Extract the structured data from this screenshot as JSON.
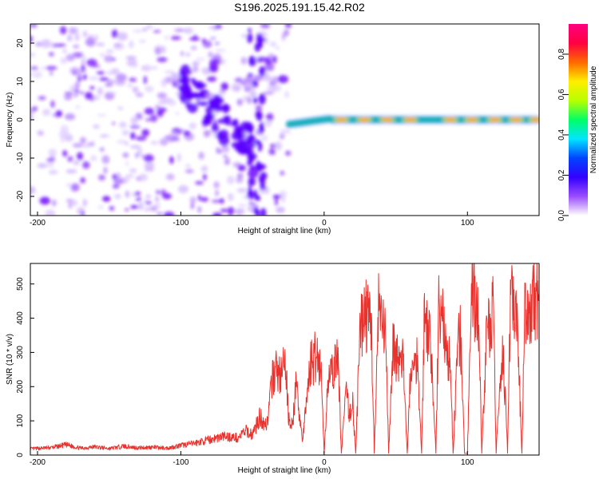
{
  "title": "S196.2025.191.15.42.R02",
  "colors": {
    "snr_line": "#e8322d",
    "axis": "#000000",
    "background": "#ffffff"
  },
  "spectrogram": {
    "xlabel": "Height of straight line (km)",
    "ylabel": "Frequency (Hz)",
    "xlim": [
      -205,
      150
    ],
    "ylim": [
      -25,
      25
    ],
    "xticks": [
      -200,
      -100,
      0,
      100
    ],
    "yticks": [
      -20,
      -10,
      0,
      10,
      20
    ],
    "colorbar": {
      "label": "Normalized spectral amplitude",
      "range": [
        0,
        0.95
      ],
      "ticks": [
        0.0,
        0.2,
        0.4,
        0.6,
        0.8
      ],
      "tick_labels": [
        "0.0",
        "0.2",
        "0.4",
        "0.6",
        "0.8"
      ],
      "colormap": [
        "#ffffff",
        "#9a4dff",
        "#3300ff",
        "#0044ff",
        "#00e5ff",
        "#00ff66",
        "#b8ff00",
        "#ffee00",
        "#ff6a00",
        "#ff0040",
        "#ff0080"
      ]
    }
  },
  "chart_data": {
    "type": "line",
    "title": "",
    "xlabel": "Height of straight line (km)",
    "ylabel": "SNR (10 * v/v)",
    "xlim": [
      -205,
      150
    ],
    "ylim": [
      0,
      560
    ],
    "xticks": [
      -200,
      -100,
      0,
      100
    ],
    "yticks": [
      0,
      100,
      200,
      300,
      400,
      500
    ],
    "series": [
      {
        "x": [
          -205,
          -190,
          -180,
          -170,
          -160,
          -150,
          -140,
          -130,
          -120,
          -110,
          -100,
          -90,
          -80,
          -70,
          -60,
          -55,
          -50,
          -45,
          -40,
          -35,
          -30,
          -27,
          -25,
          -22,
          -20,
          -18,
          -15,
          -10,
          -5,
          -2,
          0,
          3,
          5,
          8,
          10,
          12,
          15,
          18,
          20,
          22,
          25,
          28,
          30,
          33,
          35,
          38,
          40,
          43,
          45,
          48,
          50,
          53,
          55,
          58,
          60,
          63,
          65,
          68,
          70,
          73,
          75,
          78,
          80,
          83,
          85,
          88,
          90,
          93,
          95,
          98,
          100,
          103,
          105,
          108,
          110,
          113,
          115,
          118,
          120,
          123,
          125,
          128,
          130,
          133,
          135,
          138,
          140,
          143,
          145,
          148,
          150
        ],
        "y": [
          18,
          22,
          30,
          20,
          24,
          19,
          26,
          21,
          23,
          20,
          28,
          35,
          45,
          55,
          50,
          70,
          60,
          110,
          90,
          250,
          230,
          270,
          120,
          80,
          200,
          150,
          40,
          260,
          300,
          240,
          5,
          250,
          220,
          280,
          260,
          5,
          180,
          120,
          150,
          5,
          350,
          430,
          400,
          380,
          5,
          420,
          380,
          340,
          5,
          320,
          300,
          260,
          280,
          5,
          230,
          250,
          300,
          5,
          420,
          350,
          280,
          5,
          450,
          380,
          320,
          260,
          5,
          300,
          360,
          5,
          5,
          500,
          450,
          380,
          5,
          320,
          380,
          420,
          5,
          250,
          300,
          5,
          480,
          400,
          360,
          5,
          420,
          380,
          440,
          470,
          400
        ]
      }
    ]
  }
}
